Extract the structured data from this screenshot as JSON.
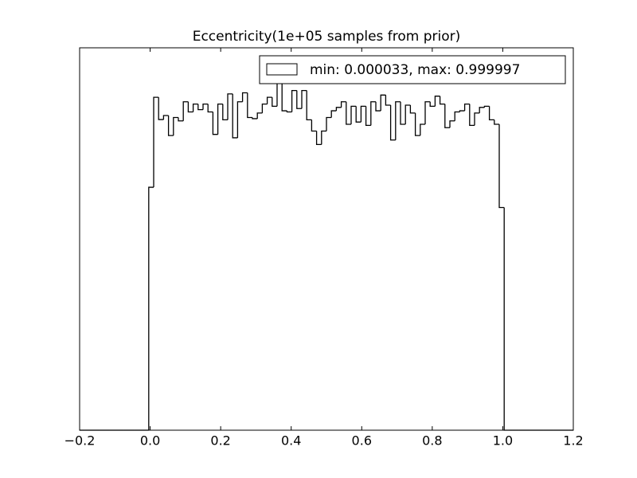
{
  "chart_data": {
    "type": "histogram",
    "title": "Eccentricity(1e+05 samples from prior)",
    "bins": [
      -0.2,
      -0.186,
      -0.172,
      -0.158,
      -0.144,
      -0.13,
      -0.116,
      -0.102,
      -0.088,
      -0.074,
      -0.06,
      -0.046,
      -0.032,
      -0.018,
      -0.004,
      0.01,
      0.024,
      0.038,
      0.052,
      0.066,
      0.08,
      0.094,
      0.108,
      0.122,
      0.136,
      0.15,
      0.164,
      0.178,
      0.192,
      0.206,
      0.22,
      0.234,
      0.248,
      0.262,
      0.276,
      0.29,
      0.304,
      0.318,
      0.332,
      0.346,
      0.36,
      0.374,
      0.388,
      0.402,
      0.416,
      0.43,
      0.444,
      0.458,
      0.472,
      0.486,
      0.5,
      0.514,
      0.528,
      0.542,
      0.556,
      0.57,
      0.584,
      0.598,
      0.612,
      0.626,
      0.64,
      0.654,
      0.668,
      0.682,
      0.696,
      0.71,
      0.724,
      0.738,
      0.752,
      0.766,
      0.78,
      0.794,
      0.808,
      0.822,
      0.836,
      0.85,
      0.864,
      0.878,
      0.892,
      0.906,
      0.92,
      0.934,
      0.948,
      0.962,
      0.976,
      0.99,
      1.004,
      1.018,
      1.032,
      1.046,
      1.06,
      1.074,
      1.088,
      1.102,
      1.116,
      1.13,
      1.144,
      1.158,
      1.172,
      1.186,
      1.2
    ],
    "series": [
      {
        "name": "min: 0.000033, max: 0.999997",
        "color": "#000000",
        "values": [
          0,
          0,
          0,
          0,
          0,
          0,
          0,
          0,
          0,
          0,
          0,
          0,
          0,
          0,
          1080,
          1480,
          1381,
          1399,
          1310,
          1390,
          1375,
          1460,
          1415,
          1450,
          1425,
          1450,
          1415,
          1315,
          1450,
          1380,
          1495,
          1300,
          1460,
          1500,
          1390,
          1385,
          1410,
          1450,
          1480,
          1440,
          1550,
          1420,
          1415,
          1510,
          1430,
          1510,
          1380,
          1330,
          1270,
          1330,
          1390,
          1420,
          1435,
          1460,
          1360,
          1440,
          1370,
          1440,
          1355,
          1460,
          1420,
          1490,
          1445,
          1290,
          1460,
          1360,
          1445,
          1410,
          1310,
          1360,
          1460,
          1440,
          1485,
          1450,
          1345,
          1375,
          1415,
          1420,
          1450,
          1355,
          1410,
          1435,
          1440,
          1380,
          1360,
          990,
          0,
          0,
          0,
          0,
          0,
          0,
          0,
          0,
          0,
          0,
          0,
          0,
          0,
          0
        ]
      }
    ],
    "xlim": [
      -0.2,
      1.2
    ],
    "xticks": [
      {
        "value": -0.2,
        "label": "−0.2"
      },
      {
        "value": 0,
        "label": "0.0"
      },
      0.2,
      0.4,
      0.6,
      0.8,
      {
        "value": 1,
        "label": "1.0"
      },
      1.2
    ],
    "ylim": [
      0,
      1700
    ],
    "legend": "upper right"
  }
}
